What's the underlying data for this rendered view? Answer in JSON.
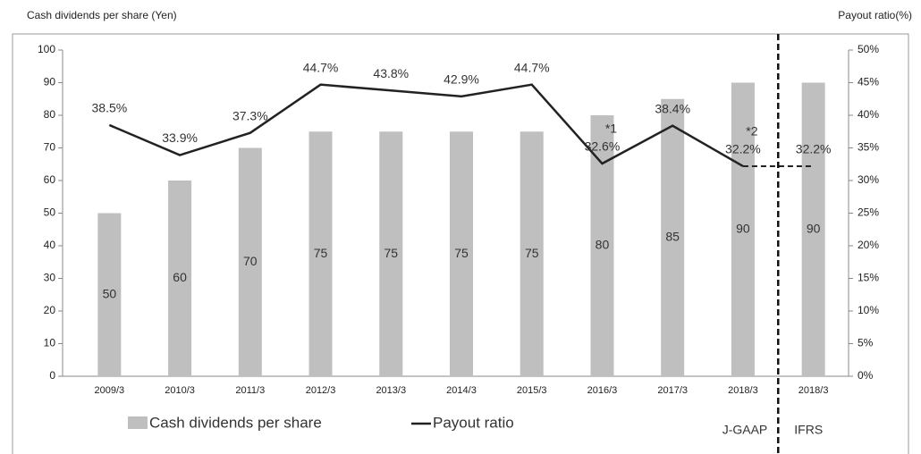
{
  "chart_data": {
    "type": "bar_line",
    "ylabel": "Cash dividends per share (Yen)",
    "y2label": "Payout ratio(%)",
    "categories": [
      "2009/3",
      "2010/3",
      "2011/3",
      "2012/3",
      "2013/3",
      "2014/3",
      "2015/3",
      "2016/3",
      "2017/3",
      "2018/3",
      "2018/3"
    ],
    "series": [
      {
        "name": "Cash dividends per share",
        "type": "bar",
        "color": "#bfbfbf",
        "values": [
          50,
          60,
          70,
          75,
          75,
          75,
          75,
          80,
          85,
          90,
          90
        ]
      },
      {
        "name": "Payout ratio",
        "type": "line",
        "axis": "y2",
        "color": "#222222",
        "values": [
          38.5,
          33.9,
          37.3,
          44.7,
          43.8,
          42.9,
          44.7,
          32.6,
          38.4,
          32.2,
          32.2
        ],
        "value_labels": [
          "38.5%",
          "33.9%",
          "37.3%",
          "44.7%",
          "43.8%",
          "42.9%",
          "44.7%",
          "32.6%",
          "38.4%",
          "32.2%",
          "32.2%"
        ]
      }
    ],
    "ylim": [
      0,
      100
    ],
    "yticks": [
      0,
      10,
      20,
      30,
      40,
      50,
      60,
      70,
      80,
      90,
      100
    ],
    "y2lim": [
      0,
      50
    ],
    "y2ticks": [
      {
        "value": 0,
        "label": "0%"
      },
      {
        "value": 5,
        "label": "5%"
      },
      {
        "value": 10,
        "label": "10%"
      },
      {
        "value": 15,
        "label": "15%"
      },
      {
        "value": 20,
        "label": "20%"
      },
      {
        "value": 25,
        "label": "25%"
      },
      {
        "value": 30,
        "label": "30%"
      },
      {
        "value": 35,
        "label": "35%"
      },
      {
        "value": 40,
        "label": "40%"
      },
      {
        "value": 45,
        "label": "45%"
      },
      {
        "value": 50,
        "label": "50%"
      }
    ],
    "sections": [
      "J-GAAP",
      "IFRS"
    ],
    "annotations": [
      "*1",
      "*2"
    ]
  }
}
